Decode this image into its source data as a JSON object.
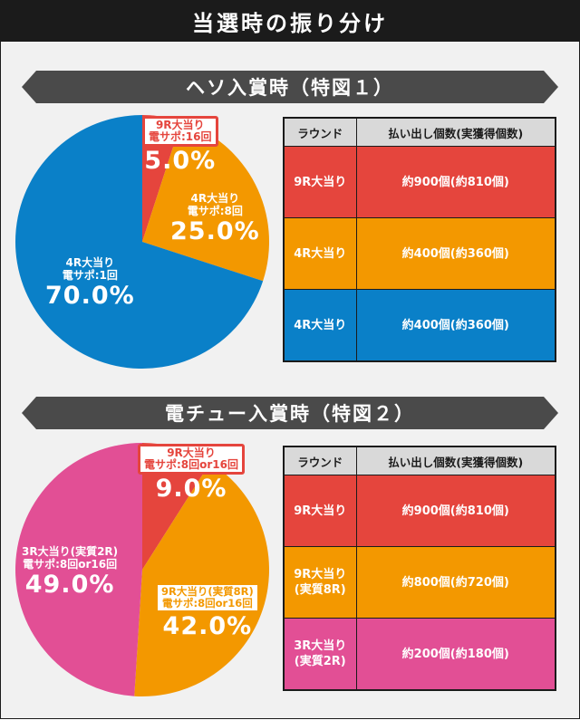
{
  "title": "当選時の振り分け",
  "colors": {
    "red": "#e5453d",
    "orange": "#f39800",
    "blue": "#0a80c8",
    "pink": "#e24f95",
    "dark": "#1b1b1b",
    "banner": "#4a4a4a"
  },
  "sections": [
    {
      "banner": "ヘソ入賞時（特図１）",
      "chart_data": {
        "type": "pie",
        "slices": [
          {
            "label": "9R大当り",
            "sub": "電サポ:16回",
            "value": 5.0,
            "pct_label": "5.0%",
            "color": "#e5453d"
          },
          {
            "label": "4R大当り",
            "sub": "電サポ:8回",
            "value": 25.0,
            "pct_label": "25.0%",
            "color": "#f39800"
          },
          {
            "label": "4R大当り",
            "sub": "電サポ:1回",
            "value": 70.0,
            "pct_label": "70.0%",
            "color": "#0a80c8"
          }
        ]
      },
      "table": {
        "headers": [
          "ラウンド",
          "払い出し個数(実獲得個数)"
        ],
        "rows": [
          {
            "round": "9R大当り",
            "round_sub": "",
            "payout": "約900個(約810個)",
            "color": "#e5453d"
          },
          {
            "round": "4R大当り",
            "round_sub": "",
            "payout": "約400個(約360個)",
            "color": "#f39800"
          },
          {
            "round": "4R大当り",
            "round_sub": "",
            "payout": "約400個(約360個)",
            "color": "#0a80c8"
          }
        ]
      }
    },
    {
      "banner": "電チュー入賞時（特図２）",
      "chart_data": {
        "type": "pie",
        "slices": [
          {
            "label": "9R大当り",
            "sub": "電サポ:8回or16回",
            "value": 9.0,
            "pct_label": "9.0%",
            "color": "#e5453d"
          },
          {
            "label": "9R大当り(実質8R)",
            "sub": "電サポ:8回or16回",
            "value": 42.0,
            "pct_label": "42.0%",
            "color": "#f39800"
          },
          {
            "label": "3R大当り(実質2R)",
            "sub": "電サポ:8回or16回",
            "value": 49.0,
            "pct_label": "49.0%",
            "color": "#e24f95"
          }
        ]
      },
      "table": {
        "headers": [
          "ラウンド",
          "払い出し個数(実獲得個数)"
        ],
        "rows": [
          {
            "round": "9R大当り",
            "round_sub": "",
            "payout": "約900個(約810個)",
            "color": "#e5453d"
          },
          {
            "round": "9R大当り",
            "round_sub": "(実質8R)",
            "payout": "約800個(約720個)",
            "color": "#f39800"
          },
          {
            "round": "3R大当り",
            "round_sub": "(実質2R)",
            "payout": "約200個(約180個)",
            "color": "#e24f95"
          }
        ]
      }
    }
  ]
}
